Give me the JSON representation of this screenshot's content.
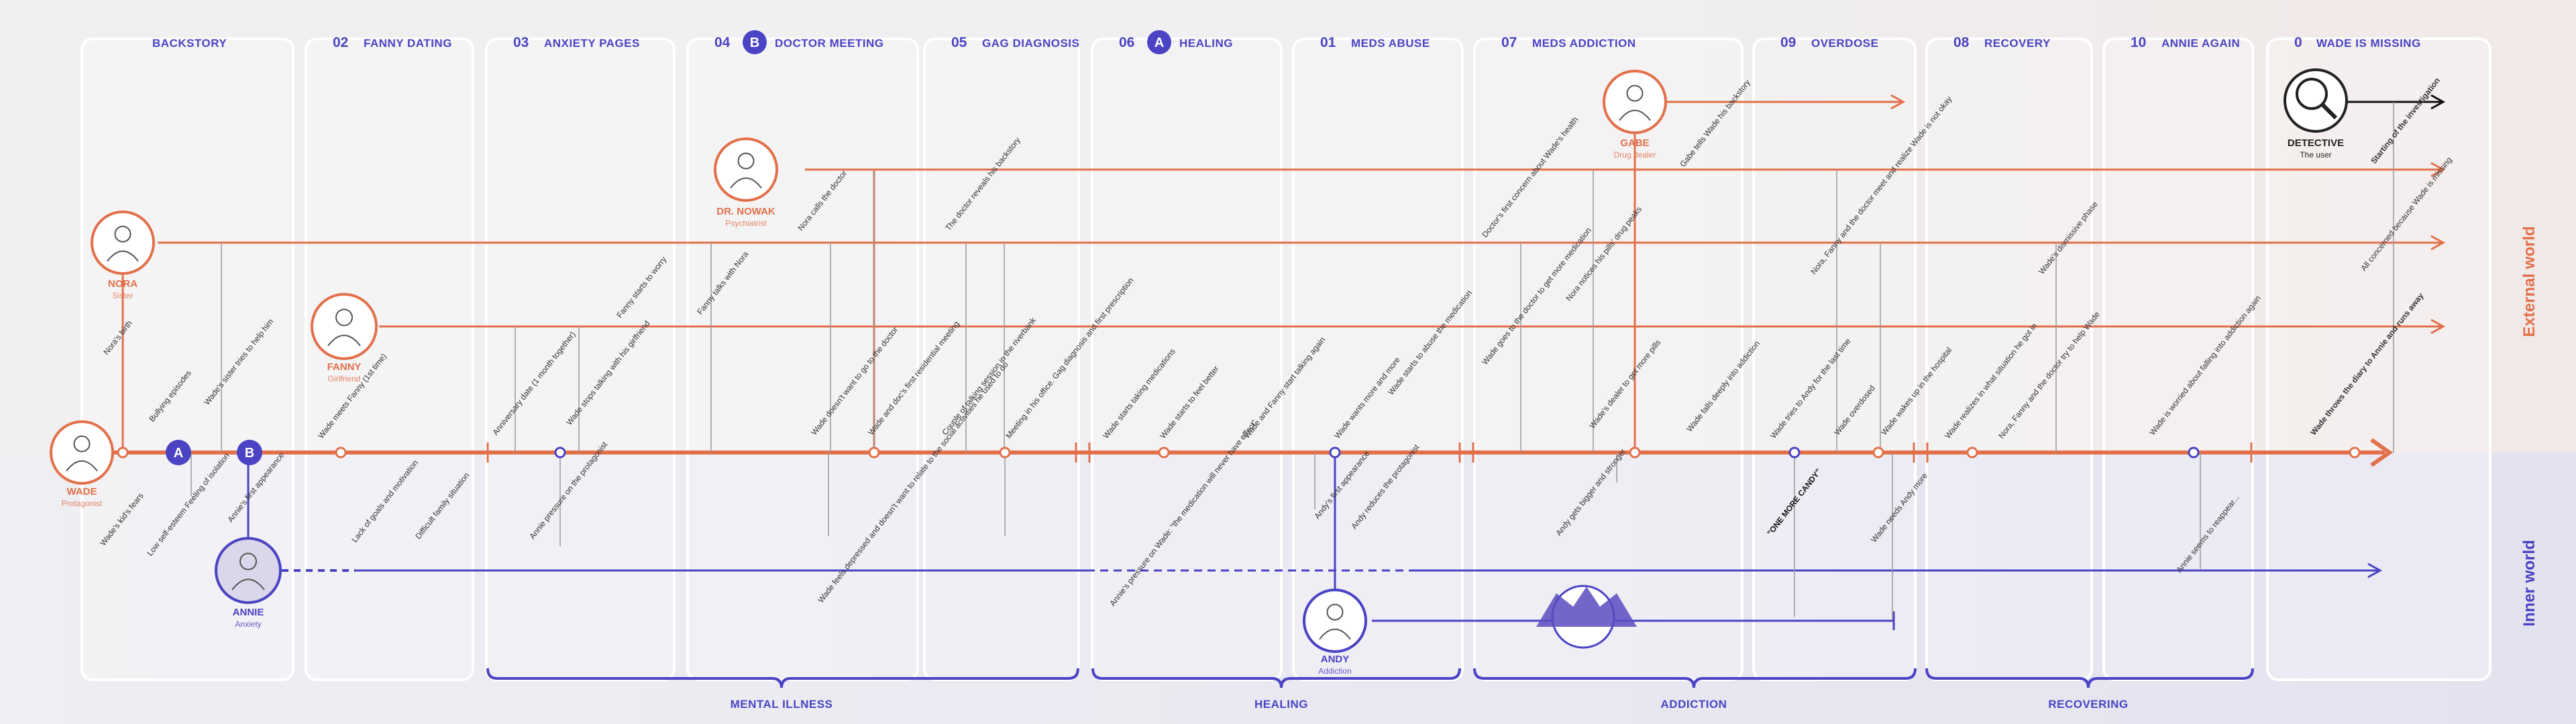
{
  "colors": {
    "orange": "#e2704a",
    "blue": "#4a43c4",
    "gray": "#9a9a9a",
    "panel": "#ffffff",
    "text": "#333333"
  },
  "sections": [
    {
      "num": "",
      "label": "BACKSTORY"
    },
    {
      "num": "02",
      "label": "FANNY DATING"
    },
    {
      "num": "03",
      "label": "ANXIETY PAGES"
    },
    {
      "num": "04",
      "badge": "B",
      "label": "DOCTOR MEETING"
    },
    {
      "num": "05",
      "label": "GAG DIAGNOSIS"
    },
    {
      "num": "06",
      "badge": "A",
      "label": "HEALING"
    },
    {
      "num": "01",
      "label": "MEDS ABUSE"
    },
    {
      "num": "07",
      "label": "MEDS ADDICTION"
    },
    {
      "num": "09",
      "label": "OVERDOSE"
    },
    {
      "num": "08",
      "label": "RECOVERY"
    },
    {
      "num": "10",
      "label": "ANNIE AGAIN"
    },
    {
      "num": "0",
      "label": "WADE IS MISSING"
    }
  ],
  "groups": [
    {
      "label": "MENTAL ILLNESS"
    },
    {
      "label": "HEALING"
    },
    {
      "label": "ADDICTION"
    },
    {
      "label": "RECOVERING"
    }
  ],
  "worlds": {
    "external": "External world",
    "inner": "Inner world"
  },
  "characters": {
    "wade": {
      "name": "WADE",
      "role": "Protagonist"
    },
    "nora": {
      "name": "NORA",
      "role": "Sister"
    },
    "fanny": {
      "name": "FANNY",
      "role": "Girlfriend"
    },
    "nowak": {
      "name": "DR. NOWAK",
      "role": "Psychiatrist"
    },
    "gabe": {
      "name": "GABE",
      "role": "Drug dealer"
    },
    "detective": {
      "name": "DETECTIVE",
      "role": "The user"
    },
    "annie": {
      "name": "ANNIE",
      "role": "Anxiety"
    },
    "andy": {
      "name": "ANDY",
      "role": "Addiction"
    }
  },
  "markers": {
    "a": "A",
    "b": "B"
  },
  "quote": "\"ONE MORE CANDY\"",
  "events_above": [
    "Nora's birth",
    "Bullying episodes",
    "Wade's sister tries to help him",
    "Wade meets Fanny (1st time)",
    "Fanny starts to worry",
    "Anniversary date (1 month together)",
    "Wade stops talking with his girlfriend",
    "Fanny talks with Nora",
    "Nora calls the doctor",
    "Wade doesn't want to go to the doctor",
    "Wade and doc's first residential meeting",
    "The doctor reveals his backstory",
    "Couple of talking session in the riverbank",
    "Meeting in his office. Gag diagnosis and first prescription",
    "Wade starts taking medications",
    "Wade starts to feel better",
    "Wade and Fanny start talking again",
    "Wade wants more and more",
    "Wade starts to abuse the medication",
    "Doctor's first concern about Wade's health",
    "Wade goes to the doctor to get more medication",
    "Nora notices his pills' drug peaks",
    "Gabe tells Wade his backstory",
    "Wade's dealer to get more pills",
    "Wade falls deeply into addiction",
    "Nora, Fanny and the doctor meet and realize Wade is not okay",
    "Wade tries to Andy for the last time",
    "Wade overdosed",
    "Wade wakes up in the hospital",
    "Wade realizes in what situation he got in",
    "Nora, Fanny and the doctor try to help Wade",
    "Wade's dismissive phase",
    "Wade is worried about falling into addiction again",
    "Starting of the investigation",
    "All concerned because Wade is missing",
    "Wade throws the diary to Annie and runs away"
  ],
  "events_below": [
    "Wade's kid's fears",
    "Low self-esteem Feeling of isolation",
    "Annie's first appearance",
    "Lack of goals and motivation",
    "Difficult family situation",
    "Annie pressure on the protagonist",
    "Wade feels depressed and doesn't want to relate to the social activities he used to do",
    "Annie's pressure on Wade: \"the medication will never have effect\"",
    "Andy's first appearance",
    "Andy reduces the protagonist",
    "Andy gets bigger and stronger",
    "Wade needs Andy more",
    "Annie seems to reappear..."
  ]
}
